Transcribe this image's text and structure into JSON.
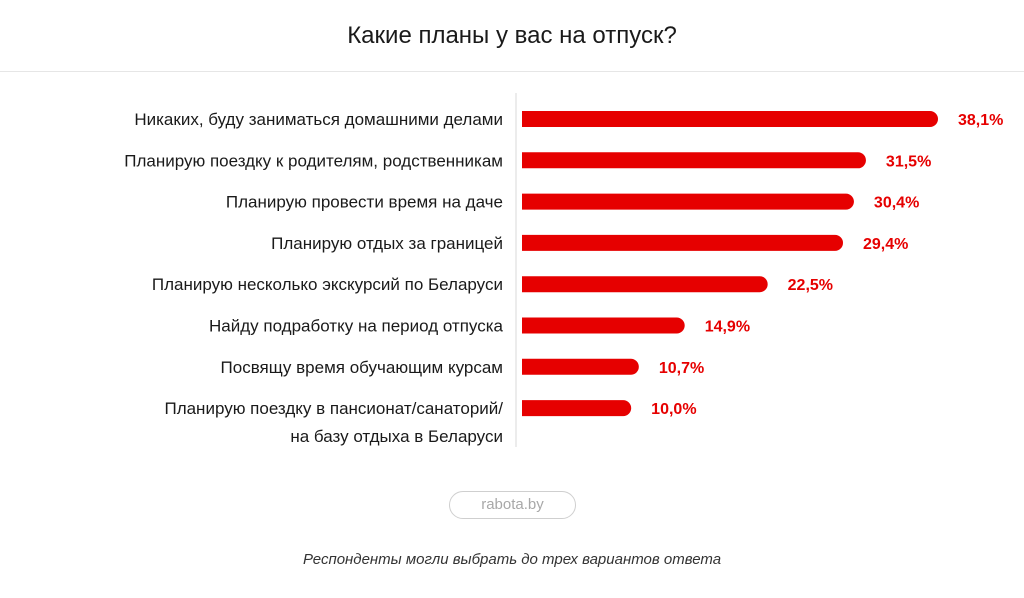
{
  "chart_data": {
    "type": "bar",
    "orientation": "horizontal",
    "title": "Какие планы у вас на отпуск?",
    "categories": [
      "Никаких, буду заниматься домашними делами",
      "Планирую поездку к родителям, родственникам",
      "Планирую провести время на даче",
      "Планирую отдых за границей",
      "Планирую несколько экскурсий по Беларуси",
      "Найду подработку на период отпуска",
      "Посвящу время обучающим курсам",
      "Планирую поездку в пансионат/санаторий/\nна базу отдыха в Беларуси"
    ],
    "values": [
      38.1,
      31.5,
      30.4,
      29.4,
      22.5,
      14.9,
      10.7,
      10.0
    ],
    "data_labels": [
      "38,1%",
      "31,5%",
      "30,4%",
      "29,4%",
      "22,5%",
      "14,9%",
      "10,7%",
      "10,0%"
    ],
    "bar_color": "#e60000",
    "label_color": "#e60000",
    "grid": false,
    "legend": "none"
  },
  "logo": "rabota.by",
  "footnote": "Респонденты могли выбрать до трех вариантов ответа"
}
